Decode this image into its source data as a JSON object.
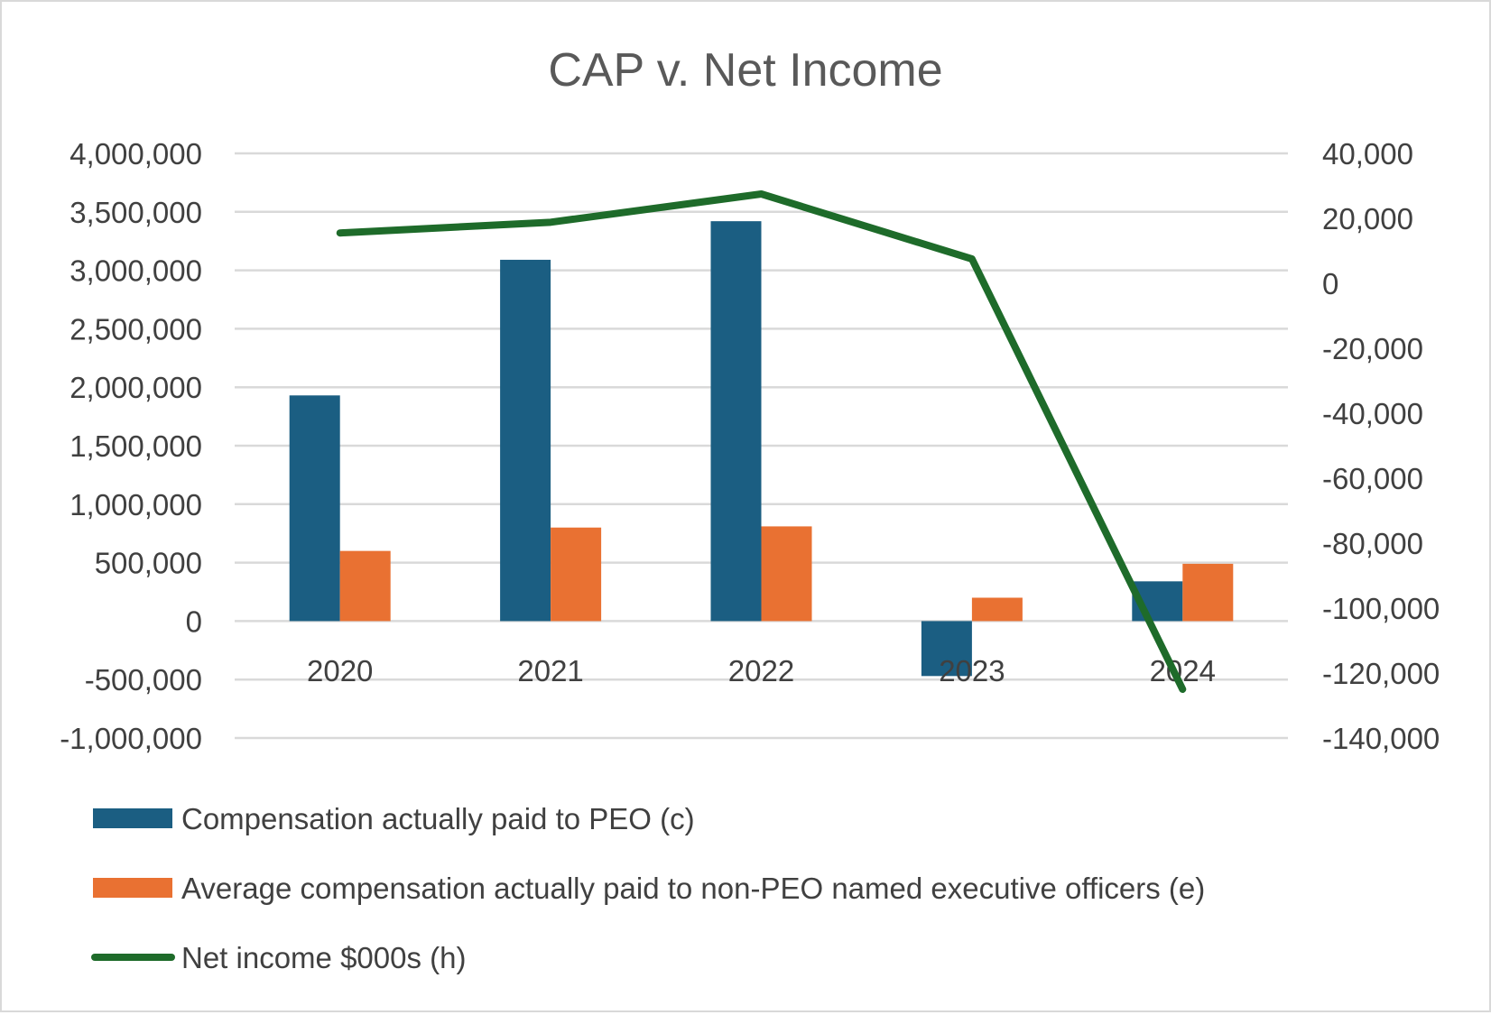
{
  "chart_data": {
    "type": "bar",
    "title": "CAP v. Net Income",
    "categories": [
      "2020",
      "2021",
      "2022",
      "2023",
      "2024"
    ],
    "y_left": {
      "min": -1000000,
      "max": 4000000,
      "step": 500000,
      "tick_labels": [
        "4,000,000",
        "3,500,000",
        "3,000,000",
        "2,500,000",
        "2,000,000",
        "1,500,000",
        "1,000,000",
        "500,000",
        "0",
        "-500,000",
        "-1,000,000"
      ]
    },
    "y_right": {
      "min": -140000,
      "max": 40000,
      "step": 20000,
      "tick_labels": [
        "40,000",
        "20,000",
        "0",
        "-20,000",
        "-40,000",
        "-60,000",
        "-80,000",
        "-100,000",
        "-120,000",
        "-140,000"
      ]
    },
    "series": [
      {
        "name": "Compensation actually paid to PEO (c)",
        "kind": "bar",
        "axis": "left",
        "color": "#1b5e82",
        "values": [
          1930000,
          3090000,
          3420000,
          -470000,
          340000
        ]
      },
      {
        "name": "Average compensation actually paid to non-PEO named executive officers (e)",
        "kind": "bar",
        "axis": "left",
        "color": "#e97132",
        "values": [
          600000,
          800000,
          810000,
          200000,
          490000
        ]
      },
      {
        "name": "Net income $000s (h)",
        "kind": "line",
        "axis": "right",
        "color": "#1e6b2a",
        "values": [
          15500,
          18800,
          27500,
          7500,
          -125000
        ]
      }
    ],
    "legend_position": "bottom",
    "grid": true
  }
}
